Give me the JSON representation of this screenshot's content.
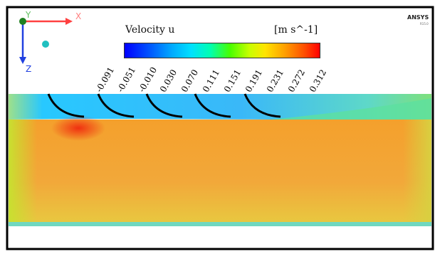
{
  "legend": {
    "title": "Velocity u",
    "units": "[m s^-1]",
    "ticks": [
      "-0.091",
      "-0.051",
      "-0.010",
      "0.030",
      "0.070",
      "0.111",
      "0.151",
      "0.191",
      "0.231",
      "0.272",
      "0.312"
    ]
  },
  "axes": {
    "x_label": "X",
    "y_label": "Y",
    "z_label": "Z"
  },
  "brand": {
    "name": "ANSYS",
    "sub": "R15.0"
  },
  "colors": {
    "frame": "#000000",
    "upper_flow": "#28c8ff",
    "lower_flow": "#f0a030",
    "deflector": "#000000",
    "x_axis": "#ff4040",
    "y_axis": "#30c030",
    "z_axis": "#2040e0"
  },
  "deflectors_count": 5
}
